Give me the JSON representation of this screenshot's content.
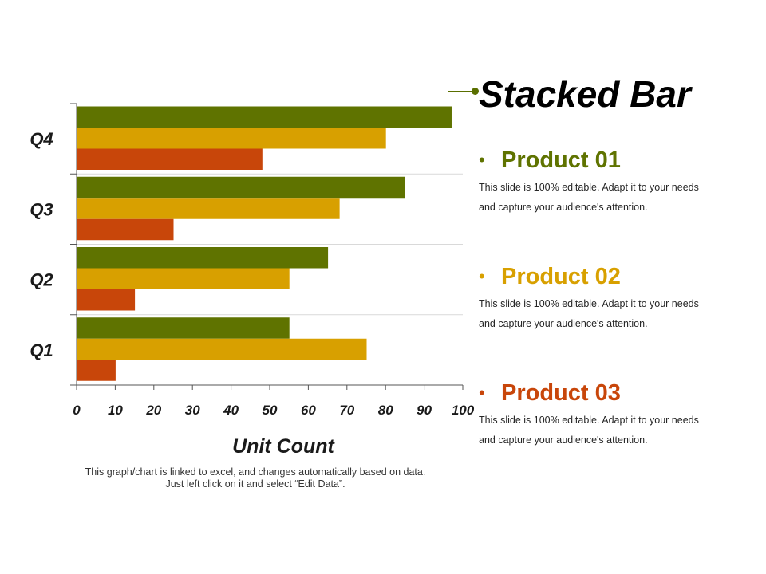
{
  "chart_data": {
    "type": "bar",
    "orientation": "horizontal",
    "categories": [
      "Q1",
      "Q2",
      "Q3",
      "Q4"
    ],
    "series": [
      {
        "name": "Product 01",
        "color": "#5f7300",
        "values": [
          55,
          65,
          85,
          97
        ]
      },
      {
        "name": "Product 02",
        "color": "#d8a000",
        "values": [
          75,
          55,
          68,
          80
        ]
      },
      {
        "name": "Product 03",
        "color": "#c8460a",
        "values": [
          10,
          15,
          25,
          48
        ]
      }
    ],
    "xlim": [
      0,
      100
    ],
    "xticks": [
      "0",
      "10",
      "20",
      "30",
      "40",
      "50",
      "60",
      "70",
      "80",
      "90",
      "100"
    ],
    "xlabel": "Unit Count",
    "grid": "horizontal separators between categories",
    "legend": "right side text list"
  },
  "chart_note": "This graph/chart is linked to excel, and changes automatically based on data. Just left click on it and select “Edit Data”.",
  "title": "Stacked Bar",
  "products": [
    {
      "title": "Product 01",
      "color": "#5f7300",
      "description": "This slide is 100% editable. Adapt it to your needs and capture your audience's attention."
    },
    {
      "title": "Product 02",
      "color": "#d8a000",
      "description": "This slide is 100% editable. Adapt it to your needs and capture your audience's attention."
    },
    {
      "title": "Product 03",
      "color": "#c8460a",
      "description": "This slide is 100% editable. Adapt it to your needs and capture your audience's attention."
    }
  ]
}
